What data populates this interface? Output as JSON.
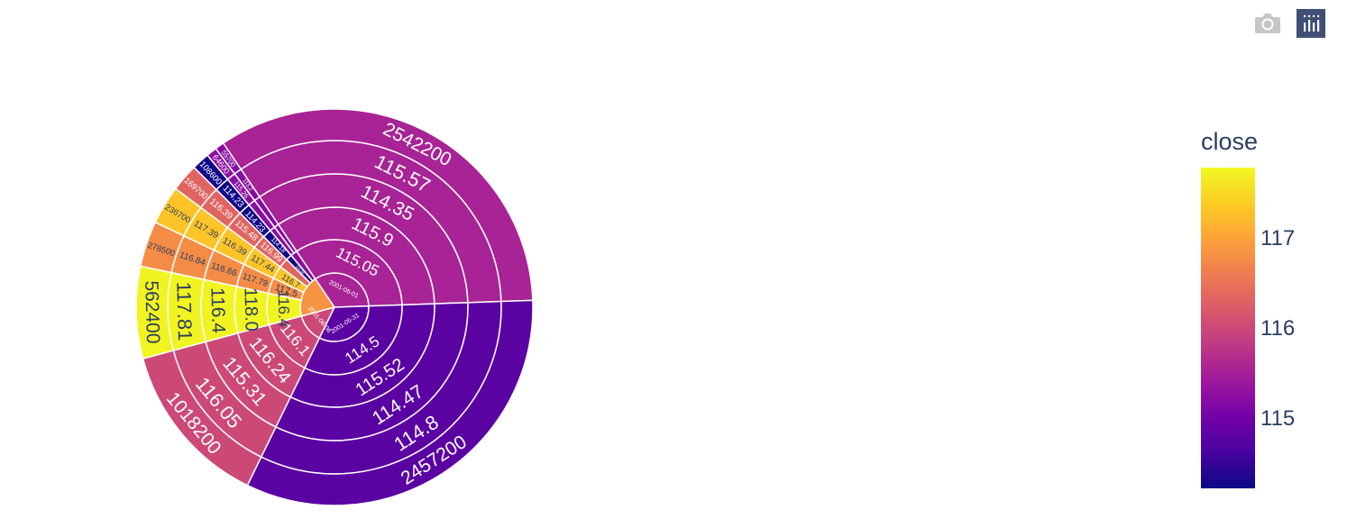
{
  "toolbar": {
    "camera_icon": "camera-icon",
    "plotly_logo": "plotly-logo-icon"
  },
  "colorbar": {
    "title": "close",
    "ticks": [
      "115",
      "116",
      "117"
    ],
    "range": [
      114.2,
      117.85
    ],
    "colorscale": [
      "#0d0887",
      "#46039f",
      "#7201a8",
      "#9c179e",
      "#bd3786",
      "#d8576b",
      "#ed7953",
      "#fb9f3a",
      "#fdca26",
      "#f0f921"
    ]
  },
  "chart_data": {
    "type": "sunburst",
    "levels": [
      "date",
      "open",
      "high",
      "low",
      "close",
      "volume"
    ],
    "color_by": "close",
    "start_angle_deg": 2,
    "segments": [
      {
        "id": "A",
        "labels": [
          "2001-06-01",
          "115.05",
          "115.9",
          "114.35",
          "115.57",
          "2542200"
        ],
        "close": 115.57,
        "volume": 2542200
      },
      {
        "id": "B",
        "labels": [
          "",
          "",
          "",
          "",
          "115.2",
          "55700"
        ],
        "close": 115.2,
        "volume": 55700
      },
      {
        "id": "C",
        "labels": [
          "",
          "",
          "",
          "",
          "115.26",
          "64600"
        ],
        "close": 115.26,
        "volume": 64600
      },
      {
        "id": "D",
        "labels": [
          "",
          "115.66",
          "114.18",
          "114.23",
          "114.23",
          "108600"
        ],
        "close": 114.23,
        "volume": 108600
      },
      {
        "id": "E",
        "labels": [
          "",
          "",
          "116.99",
          "115.48",
          "116.39",
          "169700"
        ],
        "close": 116.39,
        "volume": 169700
      },
      {
        "id": "F",
        "labels": [
          "",
          "116.7",
          "117.44",
          "116.39",
          "117.39",
          "236700"
        ],
        "close": 117.39,
        "volume": 236700
      },
      {
        "id": "G",
        "labels": [
          "",
          "117.5",
          "117.79",
          "116.66",
          "116.84",
          "278500"
        ],
        "close": 116.84,
        "volume": 278500
      },
      {
        "id": "H",
        "labels": [
          "",
          "116.4",
          "118.0",
          "116.4",
          "117.81",
          "562400"
        ],
        "close": 117.81,
        "volume": 562400
      },
      {
        "id": "I",
        "labels": [
          "2001-06-06",
          "116.1",
          "116.24",
          "115.31",
          "116.05",
          "1018200"
        ],
        "close": 116.05,
        "volume": 1018200
      },
      {
        "id": "J",
        "labels": [
          "2001-05-31",
          "114.5",
          "115.52",
          "114.47",
          "114.8",
          "2457200"
        ],
        "close": 114.8,
        "volume": 2457200
      }
    ]
  }
}
